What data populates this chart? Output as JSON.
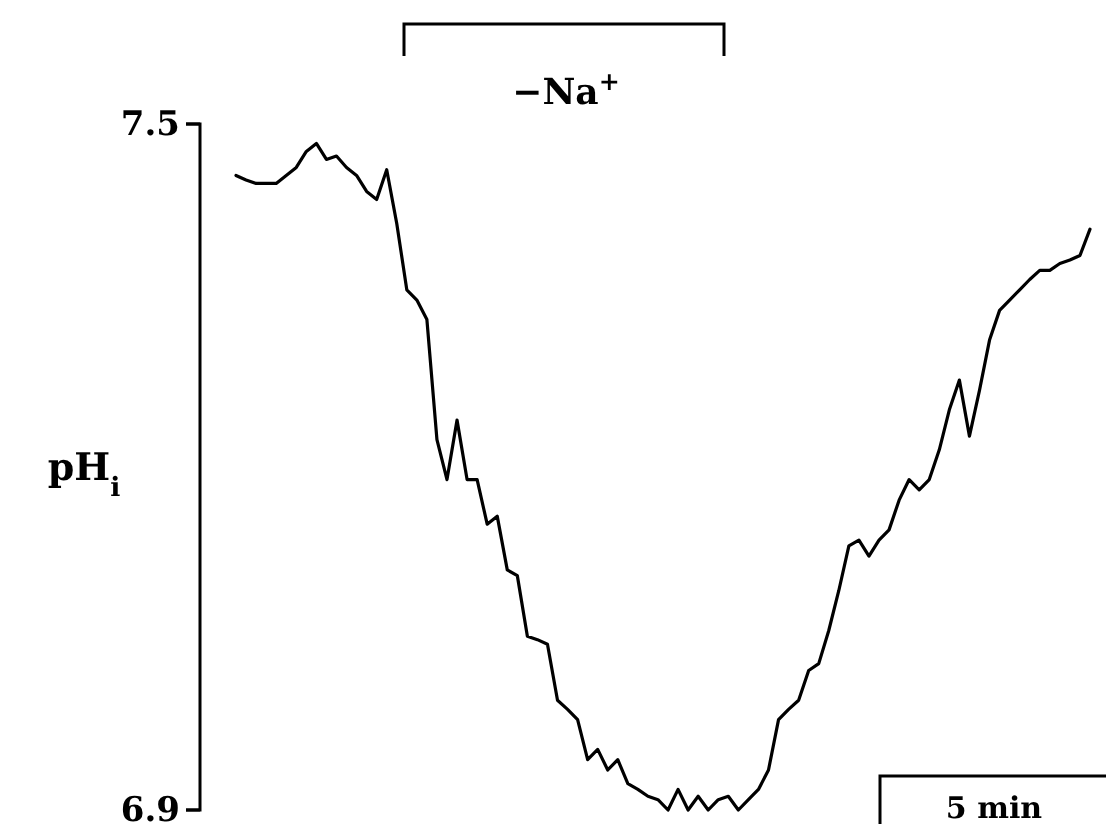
{
  "chart_data": {
    "type": "line",
    "ylabel": "pH$_{i}$",
    "annotations": [
      "−Na$^{+}$",
      "5 min"
    ],
    "color": "#000000",
    "ylim": [
      6.9,
      7.5
    ],
    "yticks": [
      6.9,
      7.5
    ],
    "grid": false,
    "tick_labels": "y",
    "categories": [
      null,
      null,
      null,
      null,
      null,
      null,
      null,
      null,
      null,
      null,
      null,
      null,
      null,
      null,
      null,
      null,
      null,
      null,
      null,
      null,
      null,
      null,
      null,
      null,
      null,
      null,
      null,
      null,
      null,
      null,
      null,
      null,
      null,
      null,
      null,
      null,
      null,
      null,
      null,
      null,
      null,
      null,
      null,
      null,
      null,
      null,
      null,
      null,
      null,
      null,
      null,
      null,
      null,
      null,
      null,
      null,
      null,
      null,
      null,
      null,
      null,
      null,
      null,
      null,
      null,
      null,
      null,
      null,
      null,
      null,
      null,
      null,
      null,
      null,
      null,
      null,
      null,
      null,
      null,
      null,
      null,
      null,
      null,
      null,
      null,
      null
    ],
    "values": [
      7.455,
      7.451,
      7.448,
      7.448,
      7.448,
      7.455,
      7.462,
      7.476,
      7.483,
      7.469,
      7.472,
      7.462,
      7.455,
      7.441,
      7.434,
      7.46,
      7.413,
      7.355,
      7.346,
      7.329,
      7.224,
      7.189,
      7.241,
      7.189,
      7.189,
      7.15,
      7.157,
      7.11,
      7.105,
      7.052,
      7.049,
      7.045,
      6.996,
      6.988,
      6.979,
      6.944,
      6.953,
      6.935,
      6.944,
      6.923,
      6.918,
      6.912,
      6.909,
      6.9,
      6.918,
      6.9,
      6.912,
      6.9,
      6.909,
      6.912,
      6.9,
      6.909,
      6.918,
      6.935,
      6.979,
      6.988,
      6.996,
      7.022,
      7.028,
      7.057,
      7.092,
      7.131,
      7.136,
      7.122,
      7.136,
      7.145,
      7.171,
      7.189,
      7.18,
      7.189,
      7.215,
      7.25,
      7.276,
      7.227,
      7.267,
      7.311,
      7.337,
      7.346,
      7.355,
      7.364,
      7.372,
      7.372,
      7.378,
      7.381,
      7.385,
      7.408
    ]
  }
}
